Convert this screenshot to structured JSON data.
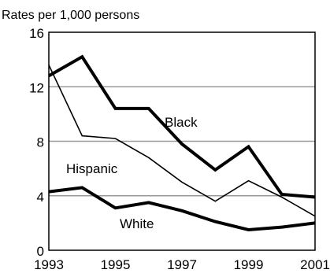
{
  "chart_data": {
    "type": "line",
    "title": "",
    "ylabel": "Rates per 1,000 persons",
    "xlabel": "",
    "x": [
      1993,
      1994,
      1995,
      1996,
      1997,
      1998,
      1999,
      2000,
      2001
    ],
    "xticks": [
      1993,
      1995,
      1997,
      1999,
      2001
    ],
    "xtick_labels": [
      "1993",
      "1995",
      "1997",
      "1999",
      "2001"
    ],
    "yticks": [
      0,
      4,
      8,
      12,
      16
    ],
    "ytick_labels": [
      "0",
      "4",
      "8",
      "12",
      "16"
    ],
    "xlim": [
      1993,
      2001
    ],
    "ylim": [
      0,
      16
    ],
    "grid": "horizontal",
    "legend": "none (series labeled inline)",
    "series": [
      {
        "name": "Black",
        "values": [
          12.8,
          14.2,
          10.4,
          10.4,
          7.8,
          5.9,
          7.6,
          4.1,
          3.9
        ],
        "color": "#000000",
        "weight": "heavy"
      },
      {
        "name": "Hispanic",
        "values": [
          13.6,
          8.4,
          8.2,
          6.8,
          5.0,
          3.6,
          5.1,
          3.9,
          2.5
        ],
        "color": "#000000",
        "weight": "thin"
      },
      {
        "name": "White",
        "values": [
          4.3,
          4.6,
          3.1,
          3.5,
          2.9,
          2.1,
          1.5,
          1.7,
          2.0
        ],
        "color": "#000000",
        "weight": "heavy"
      }
    ]
  }
}
